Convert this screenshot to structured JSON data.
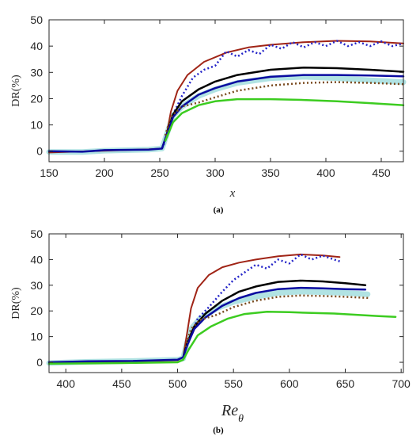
{
  "chart_data": [
    {
      "type": "line",
      "panel_label": "(a)",
      "xlabel": "x",
      "ylabel": "DR(%)",
      "xlim": [
        150,
        470
      ],
      "ylim": [
        -4,
        50
      ],
      "xticks": [
        "150",
        "200",
        "250",
        "300",
        "350",
        "400",
        "450"
      ],
      "yticks": [
        "0",
        "10",
        "20",
        "30",
        "40",
        "50"
      ],
      "grid": false,
      "series": [
        {
          "color": "#1fb0b0",
          "width": 7,
          "opacity": 0.35,
          "dash": "",
          "x": [
            150,
            180,
            200,
            240,
            252,
            256,
            262,
            270,
            285,
            300,
            320,
            350,
            380,
            410,
            440,
            470
          ],
          "y": [
            -0.3,
            -0.3,
            0.2,
            0.6,
            1.0,
            6,
            13.5,
            17,
            21,
            23.5,
            26,
            27.8,
            28.3,
            27.8,
            27.0,
            26.3
          ]
        },
        {
          "color": "#a02416",
          "width": 2,
          "opacity": 1,
          "dash": "",
          "x": [
            150,
            200,
            240,
            252,
            256,
            260,
            266,
            275,
            290,
            310,
            330,
            350,
            380,
            410,
            440,
            470
          ],
          "y": [
            -0.5,
            0.2,
            0.7,
            1.0,
            6,
            15,
            23,
            29,
            34,
            37.5,
            39.5,
            40.5,
            41.5,
            42,
            41.8,
            41
          ]
        },
        {
          "color": "#2424c8",
          "width": 2.5,
          "opacity": 1,
          "dash": "2,3",
          "x": [
            252,
            257,
            262,
            270,
            280,
            290,
            300,
            310,
            320,
            330,
            340,
            350,
            360,
            370,
            380,
            390,
            400,
            410,
            420,
            430,
            440,
            450,
            460,
            470
          ],
          "y": [
            1,
            6,
            14,
            21,
            28,
            31,
            32.5,
            38,
            36,
            38.5,
            37,
            40.5,
            39,
            41.5,
            39.5,
            41.5,
            40,
            42,
            40,
            41.5,
            40,
            41.8,
            40,
            41
          ]
        },
        {
          "color": "#000000",
          "width": 2.5,
          "opacity": 1,
          "dash": "",
          "x": [
            252,
            256,
            262,
            270,
            285,
            300,
            320,
            350,
            380,
            410,
            440,
            470
          ],
          "y": [
            1,
            6,
            14,
            19,
            23.5,
            26.5,
            29,
            31,
            31.8,
            31.6,
            31,
            30.2
          ]
        },
        {
          "color": "#0a0aa0",
          "width": 2.5,
          "opacity": 1,
          "dash": "",
          "x": [
            150,
            180,
            200,
            240,
            252,
            256,
            262,
            270,
            285,
            300,
            320,
            350,
            380,
            410,
            440,
            470
          ],
          "y": [
            0,
            -0.2,
            0.4,
            0.6,
            1.0,
            6,
            13,
            17,
            21.5,
            24,
            26.5,
            28.3,
            29,
            29,
            28.8,
            28.5
          ]
        },
        {
          "color": "#7a4a1e",
          "width": 2.5,
          "opacity": 1,
          "dash": "2,3",
          "x": [
            255,
            260,
            270,
            285,
            300,
            320,
            350,
            380,
            410,
            440,
            470
          ],
          "y": [
            6,
            13,
            17,
            18.5,
            20.5,
            23,
            25,
            26,
            26.3,
            26,
            25.5
          ]
        },
        {
          "color": "#3ccc20",
          "width": 2.5,
          "opacity": 1,
          "dash": "",
          "x": [
            255,
            262,
            270,
            285,
            300,
            320,
            350,
            380,
            410,
            440,
            470
          ],
          "y": [
            4,
            11,
            14.5,
            17.5,
            19,
            19.8,
            19.8,
            19.5,
            19,
            18.3,
            17.5
          ]
        }
      ]
    },
    {
      "type": "line",
      "panel_label": "(b)",
      "xlabel": "Re_θ",
      "ylabel": "DR(%)",
      "xlim": [
        385,
        702
      ],
      "ylim": [
        -4,
        50
      ],
      "xticks": [
        "400",
        "450",
        "500",
        "550",
        "600",
        "650",
        "700"
      ],
      "yticks": [
        "0",
        "10",
        "20",
        "30",
        "40",
        "50"
      ],
      "grid": false,
      "series": [
        {
          "color": "#1fb0b0",
          "width": 7,
          "opacity": 0.35,
          "dash": "",
          "x": [
            385,
            420,
            460,
            500,
            505,
            508,
            512,
            520,
            535,
            550,
            570,
            590,
            610,
            630,
            650,
            670
          ],
          "y": [
            -0.3,
            0.2,
            0.5,
            1.0,
            1.5,
            7,
            13,
            17,
            21,
            23.5,
            25.5,
            27,
            27.5,
            27.3,
            27,
            26.5
          ]
        },
        {
          "color": "#a02416",
          "width": 2,
          "opacity": 1,
          "dash": "",
          "x": [
            385,
            450,
            500,
            505,
            508,
            512,
            518,
            528,
            540,
            555,
            570,
            590,
            610,
            630,
            645
          ],
          "y": [
            -0.5,
            0.3,
            0.8,
            2,
            10,
            21,
            29,
            34,
            37,
            38.8,
            40,
            41.3,
            42,
            41.6,
            41
          ]
        },
        {
          "color": "#2424c8",
          "width": 2.5,
          "opacity": 1,
          "dash": "2,3",
          "x": [
            505,
            510,
            518,
            528,
            540,
            550,
            560,
            570,
            580,
            590,
            600,
            610,
            620,
            630,
            640,
            647
          ],
          "y": [
            2,
            9,
            17,
            21.5,
            27.5,
            32,
            35,
            38,
            36.5,
            40,
            38.5,
            42,
            40,
            41.5,
            40,
            39
          ]
        },
        {
          "color": "#000000",
          "width": 2.5,
          "opacity": 1,
          "dash": "",
          "x": [
            505,
            509,
            515,
            525,
            540,
            555,
            570,
            590,
            610,
            630,
            650,
            668
          ],
          "y": [
            2,
            8,
            14,
            19,
            24,
            27.5,
            29.5,
            31.3,
            31.8,
            31.5,
            30.8,
            30
          ]
        },
        {
          "color": "#0a0aa0",
          "width": 2.5,
          "opacity": 1,
          "dash": "",
          "x": [
            385,
            420,
            460,
            500,
            505,
            509,
            515,
            525,
            540,
            555,
            570,
            590,
            610,
            630,
            650,
            668
          ],
          "y": [
            0,
            0.4,
            0.5,
            1.0,
            2,
            7,
            13,
            17.5,
            22,
            25,
            27,
            28.5,
            29,
            28.8,
            28.5,
            28.3
          ]
        },
        {
          "color": "#7a4a1e",
          "width": 2.5,
          "opacity": 1,
          "dash": "2,3",
          "x": [
            507,
            512,
            520,
            535,
            550,
            570,
            590,
            610,
            630,
            650,
            672
          ],
          "y": [
            6,
            13,
            16.5,
            18.5,
            21.5,
            24,
            25.5,
            26,
            25.8,
            25.5,
            25
          ]
        },
        {
          "color": "#3ccc20",
          "width": 2.5,
          "opacity": 1,
          "dash": "",
          "x": [
            385,
            450,
            500,
            505,
            510,
            518,
            530,
            545,
            560,
            580,
            600,
            620,
            640,
            660,
            680,
            695
          ],
          "y": [
            -0.5,
            -0.3,
            0,
            1,
            5,
            10.5,
            14,
            17,
            18.8,
            19.7,
            19.5,
            19.2,
            19,
            18.5,
            18,
            17.7
          ]
        }
      ]
    }
  ]
}
